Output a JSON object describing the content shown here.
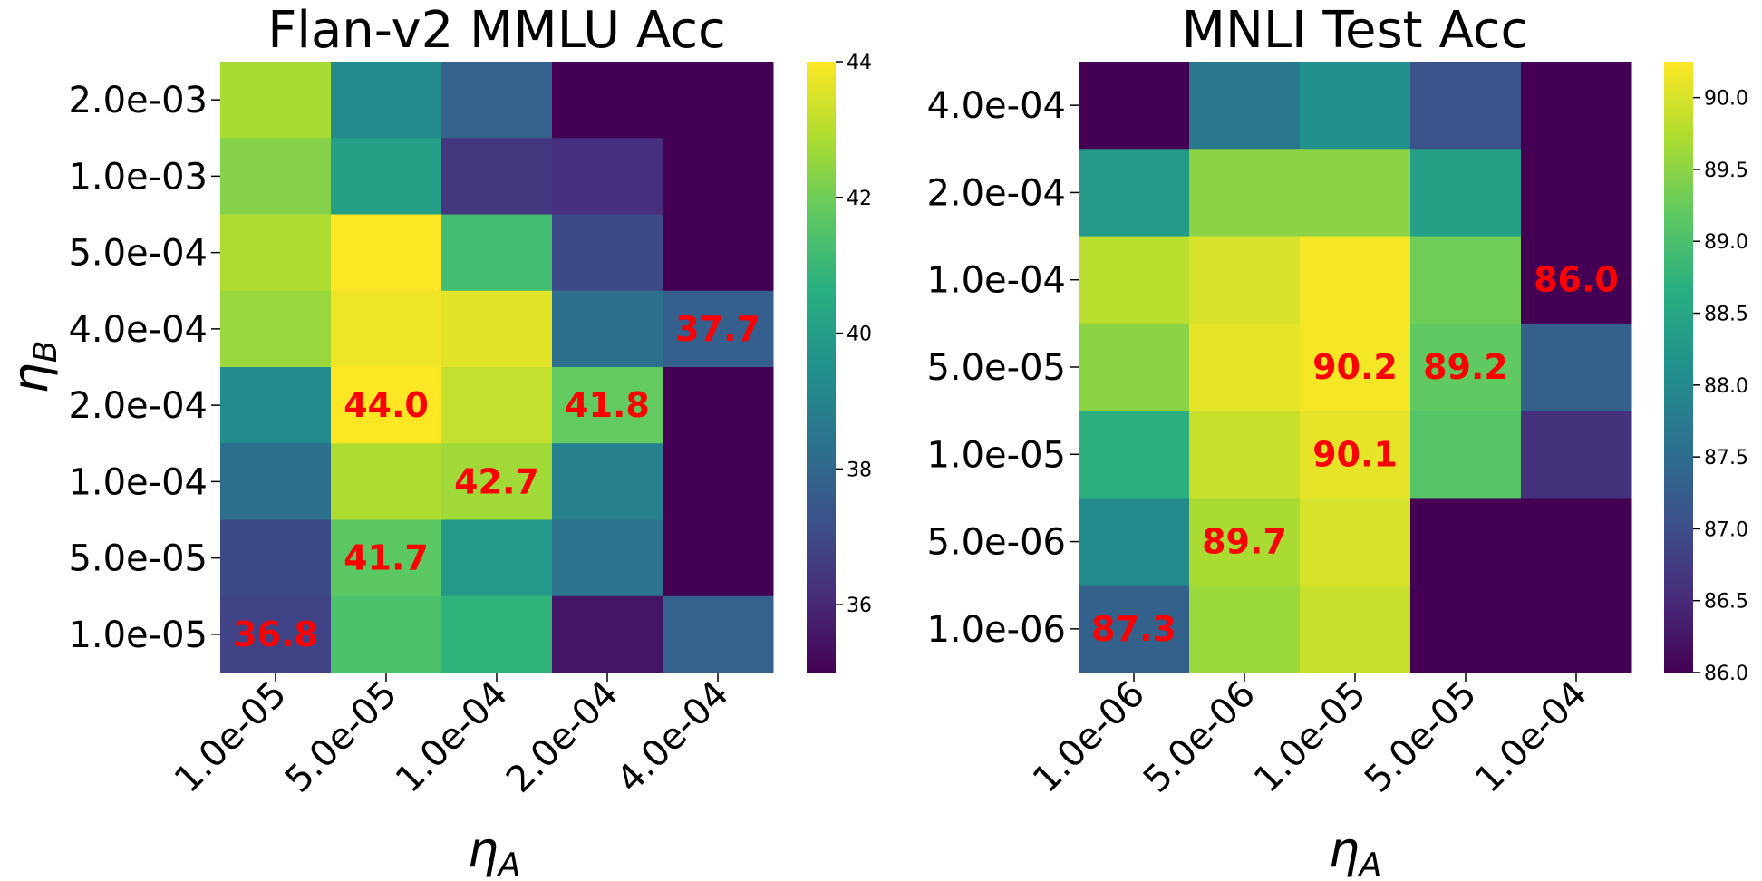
{
  "chart_data": [
    {
      "type": "heatmap",
      "title": "Flan-v2 MMLU Acc",
      "xlabel": "η_A",
      "ylabel": "η_B",
      "x_tick_labels": [
        "1.0e-05",
        "5.0e-05",
        "1.0e-04",
        "2.0e-04",
        "4.0e-04"
      ],
      "y_tick_labels": [
        "2.0e-03",
        "1.0e-03",
        "5.0e-04",
        "4.0e-04",
        "2.0e-04",
        "1.0e-04",
        "5.0e-05",
        "1.0e-05"
      ],
      "values": [
        [
          42.8,
          39.3,
          37.8,
          34.9,
          35.0
        ],
        [
          42.3,
          40.1,
          36.4,
          36.2,
          35.0
        ],
        [
          42.9,
          44.0,
          41.2,
          37.0,
          35.0
        ],
        [
          42.6,
          43.8,
          43.6,
          38.3,
          37.7
        ],
        [
          39.3,
          44.0,
          43.2,
          41.8,
          35.0
        ],
        [
          38.3,
          42.9,
          42.7,
          38.9,
          35.0
        ],
        [
          37.0,
          41.7,
          39.8,
          38.4,
          35.0
        ],
        [
          36.8,
          41.4,
          40.8,
          35.5,
          37.8
        ]
      ],
      "annotations": [
        {
          "row": 3,
          "col": 4,
          "text": "37.7"
        },
        {
          "row": 4,
          "col": 1,
          "text": "44.0"
        },
        {
          "row": 4,
          "col": 3,
          "text": "41.8"
        },
        {
          "row": 5,
          "col": 2,
          "text": "42.7"
        },
        {
          "row": 6,
          "col": 1,
          "text": "41.7"
        },
        {
          "row": 7,
          "col": 0,
          "text": "36.8"
        }
      ],
      "colorbar": {
        "min": 35.0,
        "max": 44.0,
        "ticks": [
          36,
          38,
          40,
          42,
          44
        ],
        "tick_labels": [
          "36",
          "38",
          "40",
          "42",
          "44"
        ]
      },
      "colormap": "viridis",
      "annotation_color": "#ff0000"
    },
    {
      "type": "heatmap",
      "title": "MNLI Test Acc",
      "xlabel": "η_A",
      "ylabel": "",
      "x_tick_labels": [
        "1.0e-06",
        "5.0e-06",
        "1.0e-05",
        "5.0e-05",
        "1.0e-04"
      ],
      "y_tick_labels": [
        "4.0e-04",
        "2.0e-04",
        "1.0e-04",
        "5.0e-05",
        "1.0e-05",
        "5.0e-06",
        "1.0e-06"
      ],
      "values": [
        [
          86.0,
          87.7,
          88.1,
          87.1,
          86.0
        ],
        [
          88.3,
          89.5,
          89.5,
          88.4,
          86.0
        ],
        [
          89.8,
          90.0,
          90.2,
          89.3,
          86.0
        ],
        [
          89.5,
          90.1,
          90.2,
          89.2,
          87.3
        ],
        [
          88.7,
          89.9,
          90.1,
          89.1,
          86.6
        ],
        [
          88.0,
          89.7,
          90.0,
          86.0,
          86.0
        ],
        [
          87.3,
          89.6,
          89.9,
          86.0,
          86.0
        ]
      ],
      "annotations": [
        {
          "row": 2,
          "col": 4,
          "text": "86.0"
        },
        {
          "row": 3,
          "col": 2,
          "text": "90.2"
        },
        {
          "row": 3,
          "col": 3,
          "text": "89.2"
        },
        {
          "row": 4,
          "col": 2,
          "text": "90.1"
        },
        {
          "row": 5,
          "col": 1,
          "text": "89.7"
        },
        {
          "row": 6,
          "col": 0,
          "text": "87.3"
        }
      ],
      "colorbar": {
        "min": 86.0,
        "max": 90.25,
        "ticks": [
          86.0,
          86.5,
          87.0,
          87.5,
          88.0,
          88.5,
          89.0,
          89.5,
          90.0
        ],
        "tick_labels": [
          "86.0",
          "86.5",
          "87.0",
          "87.5",
          "88.0",
          "88.5",
          "89.0",
          "89.5",
          "90.0"
        ]
      },
      "colormap": "viridis",
      "annotation_color": "#ff0000"
    }
  ]
}
